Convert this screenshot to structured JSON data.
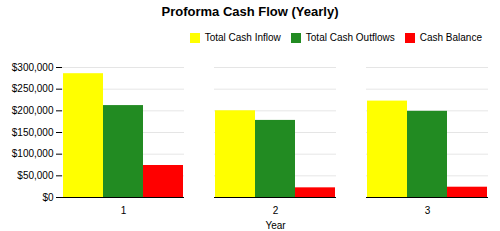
{
  "chart_data": {
    "type": "bar",
    "title": "Proforma Cash Flow (Yearly)",
    "xlabel": "Year",
    "categories": [
      "1",
      "2",
      "3"
    ],
    "series": [
      {
        "name": "Total Cash Inflow",
        "color": "yellow",
        "values": [
          285700,
          200095,
          222452
        ]
      },
      {
        "name": "Total Cash Outflows",
        "color": "#228B22",
        "values": [
          212130,
          177897,
          198888
        ]
      },
      {
        "name": "Cash Balance",
        "color": "red",
        "values": [
          73841,
          22293,
          23775
        ]
      }
    ],
    "ylim": [
      0,
      300000
    ],
    "yticks": [
      {
        "value": 0,
        "label": "$0"
      },
      {
        "value": 50000,
        "label": "$50,000"
      },
      {
        "value": 100000,
        "label": "$100,000"
      },
      {
        "value": 150000,
        "label": "$150,000"
      },
      {
        "value": 200000,
        "label": "$200,000"
      },
      {
        "value": 250000,
        "label": "$250,000"
      },
      {
        "value": 300000,
        "label": "$300,000"
      }
    ],
    "grid": true,
    "legend": "upper right"
  }
}
